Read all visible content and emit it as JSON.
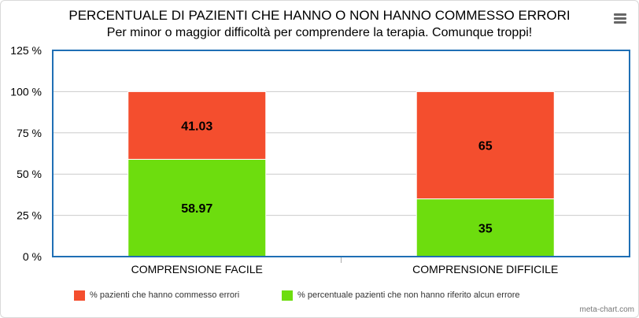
{
  "chart_data": {
    "type": "bar",
    "stacked": true,
    "title": "PERCENTUALE DI PAZIENTI CHE HANNO O NON HANNO COMMESSO ERRORI",
    "subtitle": "Per minor o maggior difficoltà per comprendere la terapia. Comunque troppi!",
    "categories": [
      "COMPRENSIONE FACILE",
      "COMPRENSIONE DIFFICILE"
    ],
    "series": [
      {
        "name": "% pazienti che hanno commesso errori",
        "values": [
          41.03,
          65
        ],
        "color": "#f44e2e"
      },
      {
        "name": "% percentuale pazienti che non hanno riferito alcun errore",
        "values": [
          58.97,
          35
        ],
        "color": "#6ddd0e"
      }
    ],
    "data_labels": [
      [
        "41.03",
        "65"
      ],
      [
        "58.97",
        "35"
      ]
    ],
    "ylim": [
      0,
      125
    ],
    "yticks": [
      "0 %",
      "25 %",
      "50 %",
      "75 %",
      "100 %",
      "125 %"
    ],
    "xlabel": "",
    "ylabel": "",
    "legend": "bottom"
  },
  "credit": "meta-chart.com",
  "colors": {
    "axis_border": "#1f6fb5",
    "grid": "#cccccc"
  }
}
